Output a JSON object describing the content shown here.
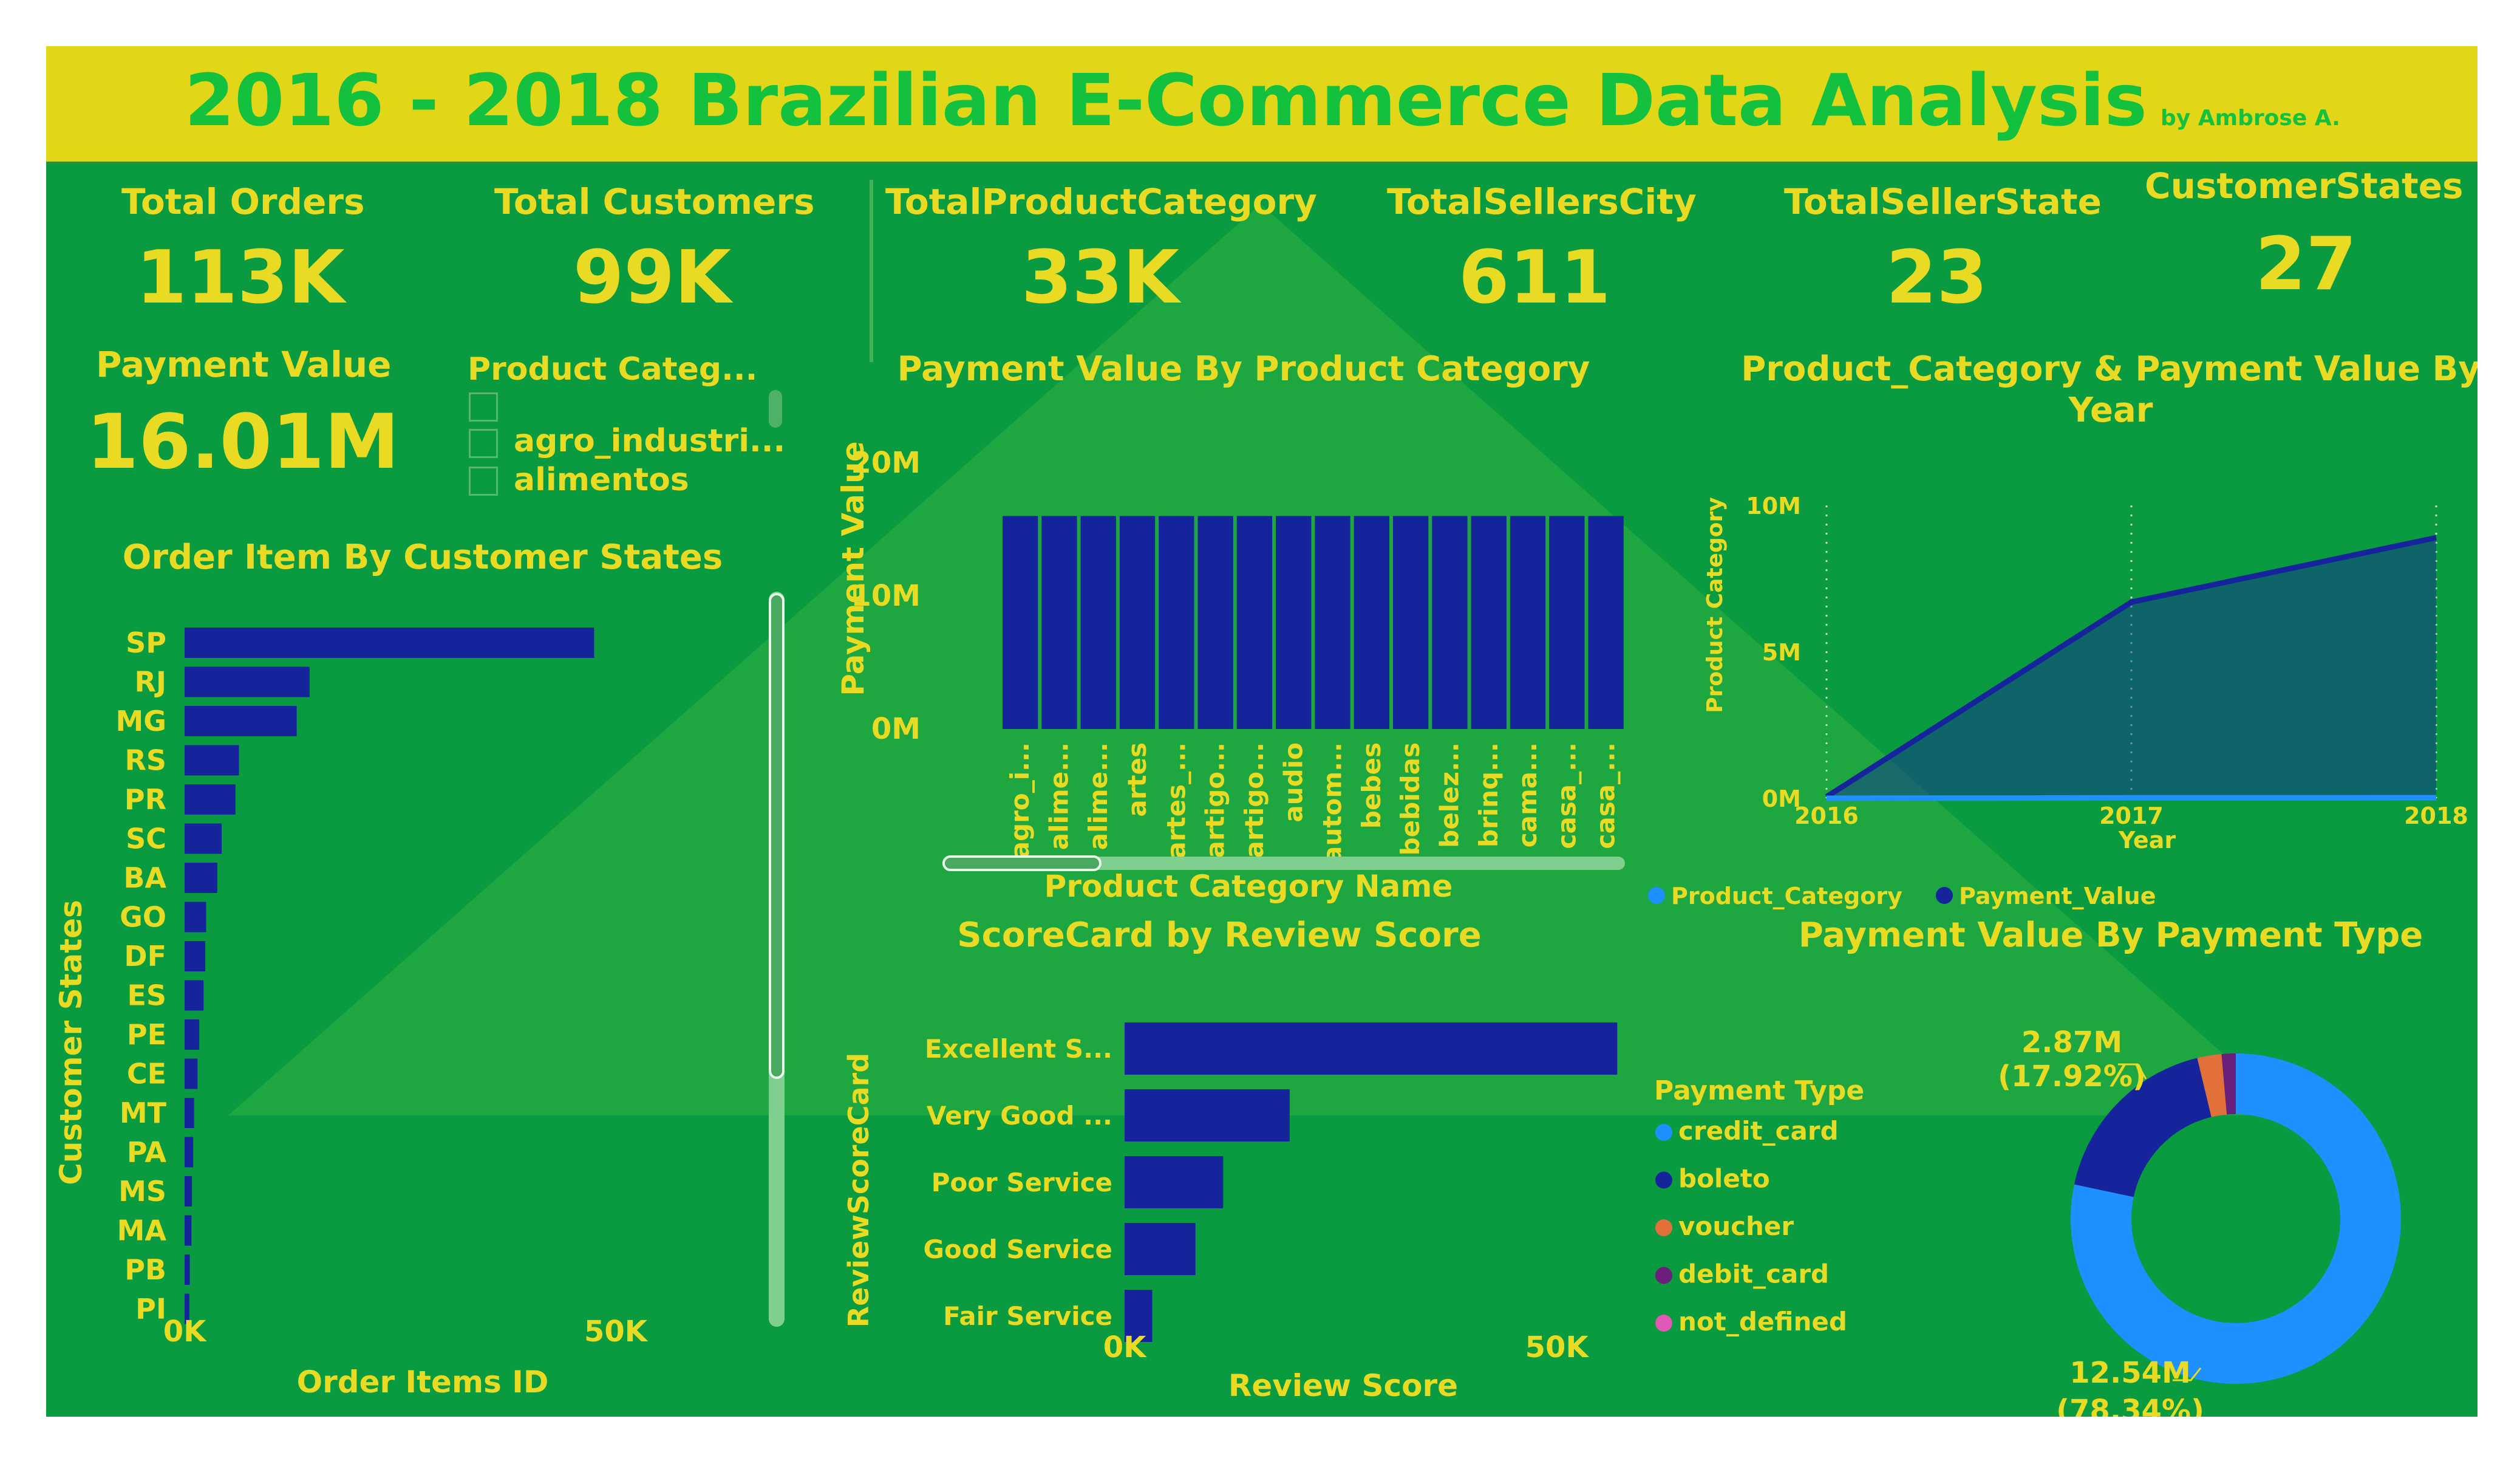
{
  "title": "2016 - 2018 Brazilian E-Commerce Data Analysis",
  "byline": "by Ambrose A.",
  "kpis": [
    {
      "label": "Total Orders",
      "value": "113K"
    },
    {
      "label": "Total Customers",
      "value": "99K"
    },
    {
      "label": "TotalProductCategory",
      "value": "33K"
    },
    {
      "label": "TotalSellersCity",
      "value": "611"
    },
    {
      "label": "TotalSellerState",
      "value": "23"
    },
    {
      "label": "CustomerStates",
      "value": "27"
    }
  ],
  "payment_value": {
    "label": "Payment Value",
    "value": "16.01M"
  },
  "slicer": {
    "title": "Product Categ...",
    "items": [
      "agro_industri...",
      "alimentos"
    ]
  },
  "colors": {
    "bg": "#0a9a3f",
    "title_bar": "#e2d619",
    "title_text": "#13c13f",
    "label": "#e9da24",
    "bar": "#15249b"
  },
  "chart_data": [
    {
      "id": "states",
      "type": "bar",
      "orientation": "horizontal",
      "title": "Order Item By Customer States",
      "xlabel": "Order Items ID",
      "ylabel": "Customer States",
      "xlim": [
        0,
        60000
      ],
      "x_ticks": [
        "0K",
        "50K"
      ],
      "categories": [
        "SP",
        "RJ",
        "MG",
        "RS",
        "PR",
        "SC",
        "BA",
        "GO",
        "DF",
        "ES",
        "PE",
        "CE",
        "MT",
        "PA",
        "MS",
        "MA",
        "PB",
        "PI"
      ],
      "values": [
        47500,
        14500,
        13000,
        6300,
        5900,
        4300,
        3800,
        2500,
        2400,
        2200,
        1700,
        1500,
        1100,
        1000,
        850,
        800,
        600,
        550
      ]
    },
    {
      "id": "product",
      "type": "bar",
      "title": "Payment Value By Product Category",
      "xlabel": "Product Category Name",
      "ylabel": "Payment Value",
      "ylim": [
        0,
        20000000
      ],
      "y_ticks": [
        "0M",
        "10M",
        "20M"
      ],
      "categories": [
        "agro_i...",
        "alime...",
        "alime...",
        "artes",
        "artes_...",
        "artigo...",
        "artigo...",
        "audio",
        "autom...",
        "bebes",
        "bebidas",
        "belez...",
        "brinq...",
        "cama...",
        "casa_...",
        "casa_..."
      ],
      "values": [
        16010000,
        16010000,
        16010000,
        16010000,
        16010000,
        16010000,
        16010000,
        16010000,
        16010000,
        16010000,
        16010000,
        16010000,
        16010000,
        16010000,
        16010000,
        16010000
      ]
    },
    {
      "id": "yearly",
      "type": "area",
      "title": "Product_Category & Payment Value By Year",
      "xlabel": "Year",
      "ylabel": "Product Category",
      "ylim": [
        0,
        10000000
      ],
      "y_ticks": [
        "0M",
        "5M",
        "10M"
      ],
      "x": [
        "2016",
        "2017",
        "2018"
      ],
      "series": [
        {
          "name": "Product_Category",
          "color": "#1e90ff",
          "values": [
            330,
            14800,
            17500
          ]
        },
        {
          "name": "Payment_Value",
          "color": "#15249b",
          "values": [
            50000,
            6700000,
            8900000
          ]
        }
      ]
    },
    {
      "id": "review",
      "type": "bar",
      "orientation": "horizontal",
      "title": "ScoreCard by Review Score",
      "xlabel": "Review Score",
      "ylabel": "ReviewScoreCard",
      "xlim": [
        0,
        60000
      ],
      "x_ticks": [
        "0K",
        "50K"
      ],
      "categories": [
        "Excellent S...",
        "Very Good ...",
        "Poor Service",
        "Good Service",
        "Fair Service"
      ],
      "values": [
        57000,
        19100,
        11400,
        8200,
        3200
      ]
    },
    {
      "id": "payment_type",
      "type": "pie",
      "style": "donut",
      "title": "Payment Value By Payment Type",
      "legend_title": "Payment Type",
      "labels": [
        "credit_card",
        "boleto",
        "voucher",
        "debit_card",
        "not_defined"
      ],
      "values": [
        12.54,
        2.87,
        0.38,
        0.22,
        0.001
      ],
      "colors": [
        "#1e90ff",
        "#15249b",
        "#e2703a",
        "#6a1f7a",
        "#e05ab5"
      ],
      "data_labels": [
        {
          "value": "12.54M",
          "pct": "(78.34%)"
        },
        {
          "value": "2.87M",
          "pct": "(17.92%)"
        }
      ]
    }
  ]
}
